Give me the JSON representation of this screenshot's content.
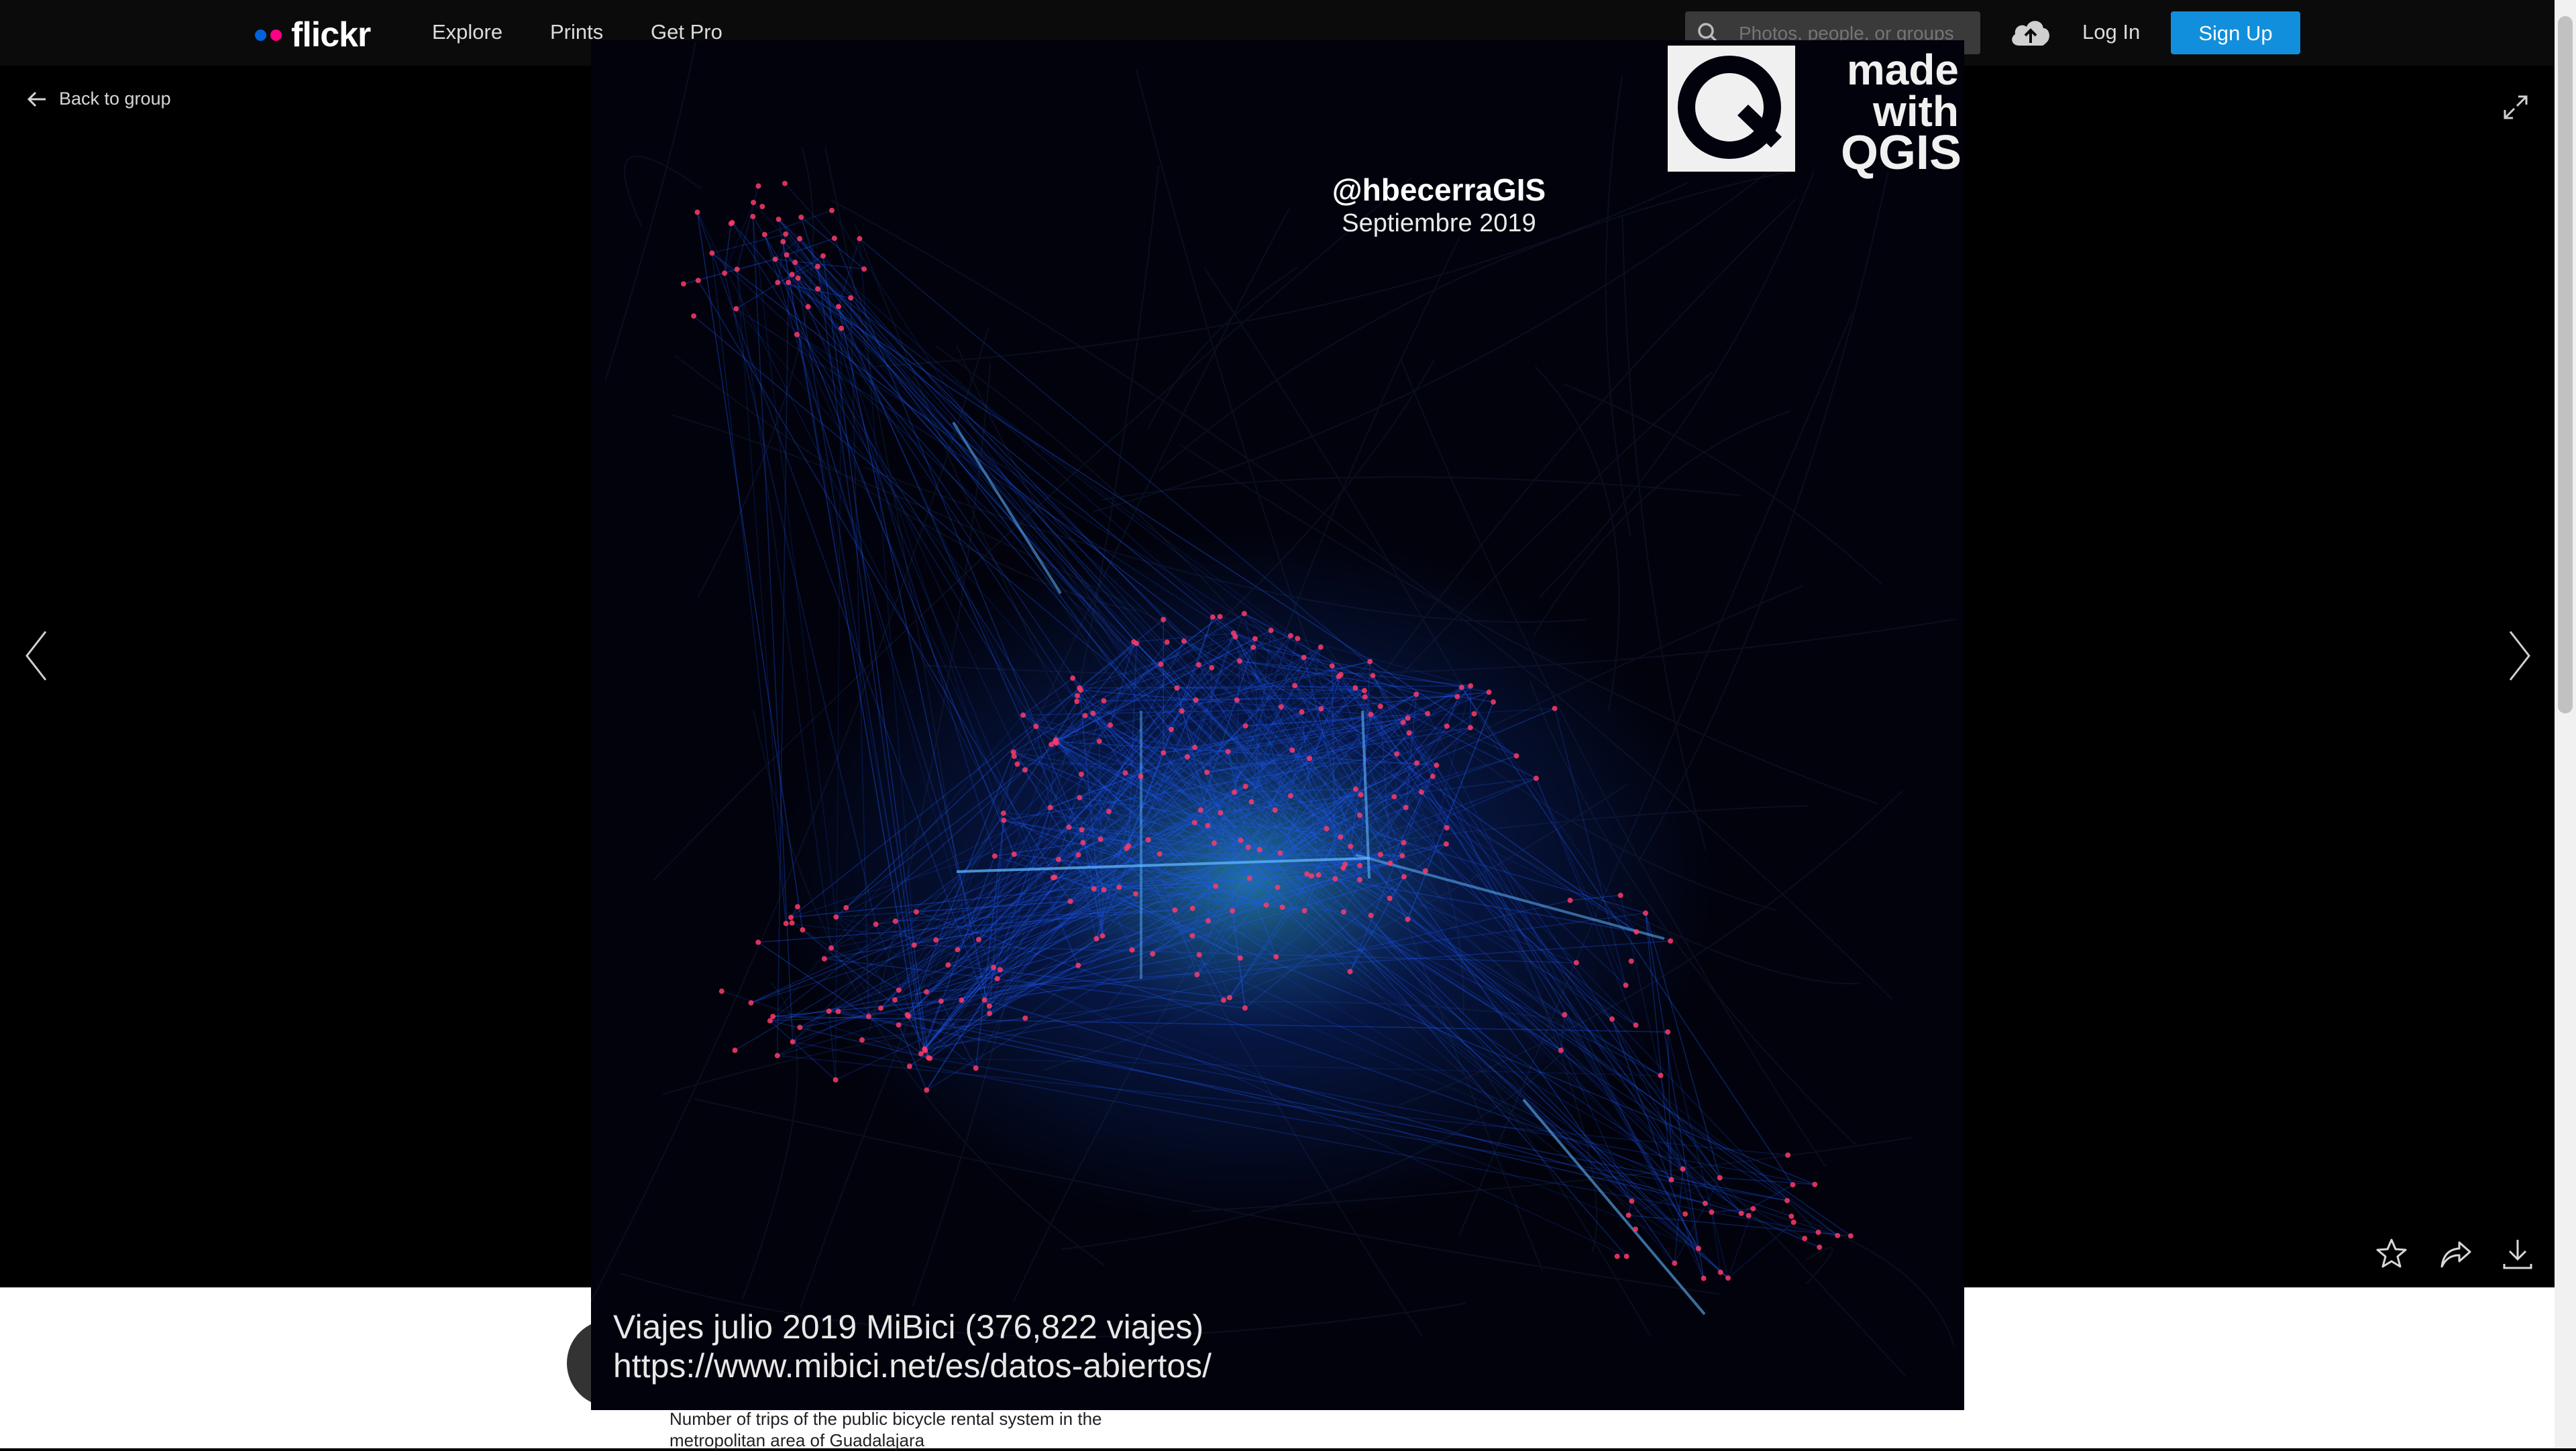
{
  "header": {
    "logo_text": "flickr",
    "nav": [
      "Explore",
      "Prints",
      "Get Pro"
    ],
    "search_placeholder": "Photos, people, or groups",
    "login_label": "Log In",
    "signup_label": "Sign Up"
  },
  "viewer": {
    "back_label": "Back to group",
    "photo": {
      "handle": "@hbecerraGIS",
      "date": "Septiembre 2019",
      "badge_line1": "made",
      "badge_line2": "with",
      "badge_line3": "QGIS",
      "caption_line1": "Viajes julio 2019 MiBici (376,822 viajes)",
      "caption_line2": "https://www.mibici.net/es/datos-abiertos/"
    }
  },
  "description": "Number of trips of the public bicycle rental system in the metropolitan area of Guadalajara",
  "colors": {
    "accent": "#128fdc",
    "flow_blue": "#1a5cff",
    "station_red": "#ff2a55"
  },
  "icons": [
    "search-icon",
    "upload-icon",
    "back-arrow-icon",
    "expand-icon",
    "chevron-left-icon",
    "chevron-right-icon",
    "star-icon",
    "share-icon",
    "download-icon"
  ]
}
